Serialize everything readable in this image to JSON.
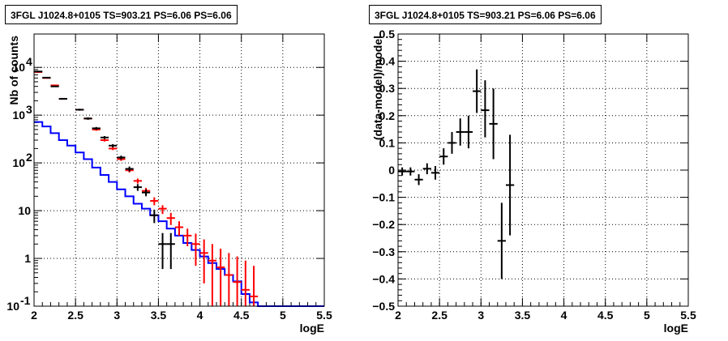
{
  "chart_data": [
    {
      "type": "histogram",
      "title": "3FGL J1024.8+0105 TS=903.21 PS=6.06 PS=6.06",
      "xlabel": "logE",
      "ylabel": "Nb of counts",
      "xlim": [
        2,
        5.5
      ],
      "ylim": [
        0.1,
        50000
      ],
      "yscale": "log",
      "grid": true,
      "x_ticks": [
        "2",
        "2.5",
        "3",
        "3.5",
        "4",
        "4.5",
        "5",
        "5.5"
      ],
      "y_ticks": [
        {
          "value": 0.1,
          "label": "10",
          "exp": "-1"
        },
        {
          "value": 1,
          "label": "1",
          "exp": ""
        },
        {
          "value": 10,
          "label": "10",
          "exp": ""
        },
        {
          "value": 100,
          "label": "10",
          "exp": "2"
        },
        {
          "value": 1000,
          "label": "10",
          "exp": "3"
        },
        {
          "value": 10000,
          "label": "10",
          "exp": "4"
        }
      ],
      "bin_edges": [
        2.0,
        2.1,
        2.2,
        2.3,
        2.4,
        2.5,
        2.6,
        2.7,
        2.8,
        2.9,
        3.0,
        3.1,
        3.2,
        3.3,
        3.4,
        3.5,
        3.6,
        3.7,
        3.8,
        3.9,
        4.0,
        4.1,
        4.2,
        4.3,
        4.4,
        4.5,
        4.6,
        4.7,
        4.8,
        4.9,
        5.0,
        5.1,
        5.2,
        5.3,
        5.4,
        5.5
      ],
      "series": [
        {
          "kind": "step",
          "color": "#0000ff",
          "values": [
            720,
            580,
            420,
            300,
            230,
            165,
            120,
            80,
            56,
            40,
            28,
            20,
            14,
            11,
            8,
            6,
            4.2,
            3.0,
            2.1,
            1.5,
            1.1,
            0.8,
            0.6,
            0.45,
            0.33,
            0.18,
            0.12,
            0.1,
            0.1,
            0.1,
            0.1,
            0.1,
            0.1,
            0.1,
            0.1
          ]
        },
        {
          "kind": "error_points",
          "color": "#ff0000",
          "points": [
            {
              "x": 2.05,
              "y": 8000,
              "lo": 7800,
              "hi": 8200
            },
            {
              "x": 2.15,
              "y": 6000,
              "lo": 5850,
              "hi": 6150
            },
            {
              "x": 2.25,
              "y": 4200,
              "lo": 4080,
              "hi": 4320
            },
            {
              "x": 2.35,
              "y": 2200,
              "lo": 2130,
              "hi": 2270
            },
            {
              "x": 2.55,
              "y": 1300,
              "lo": 1250,
              "hi": 1350
            },
            {
              "x": 2.65,
              "y": 850,
              "lo": 810,
              "hi": 890
            },
            {
              "x": 2.75,
              "y": 500,
              "lo": 470,
              "hi": 530
            },
            {
              "x": 2.85,
              "y": 300,
              "lo": 280,
              "hi": 320
            },
            {
              "x": 2.95,
              "y": 200,
              "lo": 185,
              "hi": 215
            },
            {
              "x": 3.05,
              "y": 120,
              "lo": 110,
              "hi": 130
            },
            {
              "x": 3.15,
              "y": 70,
              "lo": 63,
              "hi": 77
            },
            {
              "x": 3.25,
              "y": 42,
              "lo": 37,
              "hi": 47
            },
            {
              "x": 3.35,
              "y": 26,
              "lo": 22,
              "hi": 30
            },
            {
              "x": 3.45,
              "y": 16,
              "lo": 13,
              "hi": 19
            },
            {
              "x": 3.55,
              "y": 11,
              "lo": 8.5,
              "hi": 13
            },
            {
              "x": 3.65,
              "y": 7,
              "lo": 5,
              "hi": 9
            },
            {
              "x": 3.75,
              "y": 4.5,
              "lo": 3,
              "hi": 6
            },
            {
              "x": 3.85,
              "y": 3.0,
              "lo": 1.8,
              "hi": 4.2
            },
            {
              "x": 3.95,
              "y": 2.0,
              "lo": 0.7,
              "hi": 3.3
            },
            {
              "x": 4.05,
              "y": 1.3,
              "lo": 0.3,
              "hi": 2.5
            },
            {
              "x": 4.15,
              "y": 0.9,
              "lo": 0.1,
              "hi": 2.0
            },
            {
              "x": 4.25,
              "y": 0.65,
              "lo": 0.1,
              "hi": 1.6
            },
            {
              "x": 4.35,
              "y": 0.45,
              "lo": 0.1,
              "hi": 1.3
            },
            {
              "x": 4.45,
              "y": 0.32,
              "lo": 0.1,
              "hi": 1.1
            },
            {
              "x": 4.55,
              "y": 0.22,
              "lo": 0.1,
              "hi": 0.9
            },
            {
              "x": 4.65,
              "y": 0.16,
              "lo": 0.1,
              "hi": 0.7
            }
          ]
        },
        {
          "kind": "error_points",
          "color": "#000000",
          "points": [
            {
              "x": 2.05,
              "y": 8200,
              "lo": 7900,
              "hi": 8500
            },
            {
              "x": 2.15,
              "y": 6100,
              "lo": 5900,
              "hi": 6300
            },
            {
              "x": 2.25,
              "y": 4000,
              "lo": 3870,
              "hi": 4130
            },
            {
              "x": 2.35,
              "y": 2200,
              "lo": 2110,
              "hi": 2290
            },
            {
              "x": 2.55,
              "y": 1300,
              "lo": 1240,
              "hi": 1360
            },
            {
              "x": 2.65,
              "y": 850,
              "lo": 800,
              "hi": 900
            },
            {
              "x": 2.75,
              "y": 530,
              "lo": 495,
              "hi": 565
            },
            {
              "x": 2.85,
              "y": 340,
              "lo": 315,
              "hi": 365
            },
            {
              "x": 2.95,
              "y": 230,
              "lo": 212,
              "hi": 248
            },
            {
              "x": 3.05,
              "y": 130,
              "lo": 118,
              "hi": 142
            },
            {
              "x": 3.15,
              "y": 75,
              "lo": 66,
              "hi": 84
            },
            {
              "x": 3.25,
              "y": 31,
              "lo": 26,
              "hi": 36
            },
            {
              "x": 3.35,
              "y": 24,
              "lo": 20,
              "hi": 28
            },
            {
              "x": 3.45,
              "y": 8,
              "lo": 5.5,
              "hi": 10.5
            },
            {
              "x": 3.55,
              "y": 2,
              "lo": 0.6,
              "hi": 3.4
            },
            {
              "x": 3.65,
              "y": 2,
              "lo": 0.6,
              "hi": 3.4
            }
          ]
        }
      ]
    },
    {
      "type": "scatter",
      "title": "3FGL J1024.8+0105 TS=903.21 PS=6.06 PS=6.06",
      "xlabel": "logE",
      "ylabel": "(data-model)/model",
      "xlim": [
        2,
        5.5
      ],
      "ylim": [
        -0.5,
        0.5
      ],
      "grid": true,
      "x_ticks": [
        "2",
        "2.5",
        "3",
        "3.5",
        "4",
        "4.5",
        "5",
        "5.5"
      ],
      "y_ticks": [
        "−0.5",
        "−0.4",
        "−0.3",
        "−0.2",
        "−0.1",
        "0",
        "0.1",
        "0.2",
        "0.3",
        "0.4",
        "0.5"
      ],
      "y_tick_values": [
        -0.5,
        -0.4,
        -0.3,
        -0.2,
        -0.1,
        0,
        0.1,
        0.2,
        0.3,
        0.4,
        0.5
      ],
      "series": [
        {
          "kind": "error_points",
          "color": "#000000",
          "points": [
            {
              "x": 2.05,
              "y": -0.005,
              "lo": -0.02,
              "hi": 0.01
            },
            {
              "x": 2.15,
              "y": -0.005,
              "lo": -0.02,
              "hi": 0.01
            },
            {
              "x": 2.25,
              "y": -0.035,
              "lo": -0.055,
              "hi": -0.015
            },
            {
              "x": 2.35,
              "y": 0.005,
              "lo": -0.015,
              "hi": 0.025
            },
            {
              "x": 2.45,
              "y": -0.01,
              "lo": -0.035,
              "hi": 0.015
            },
            {
              "x": 2.55,
              "y": 0.05,
              "lo": 0.02,
              "hi": 0.08
            },
            {
              "x": 2.65,
              "y": 0.1,
              "lo": 0.06,
              "hi": 0.14
            },
            {
              "x": 2.75,
              "y": 0.14,
              "lo": 0.09,
              "hi": 0.19
            },
            {
              "x": 2.85,
              "y": 0.14,
              "lo": 0.08,
              "hi": 0.2
            },
            {
              "x": 2.95,
              "y": 0.29,
              "lo": 0.21,
              "hi": 0.37
            },
            {
              "x": 3.05,
              "y": 0.22,
              "lo": 0.12,
              "hi": 0.33
            },
            {
              "x": 3.15,
              "y": 0.17,
              "lo": 0.04,
              "hi": 0.3
            },
            {
              "x": 3.25,
              "y": -0.26,
              "lo": -0.4,
              "hi": -0.12
            },
            {
              "x": 3.35,
              "y": -0.055,
              "lo": -0.24,
              "hi": 0.13
            }
          ]
        }
      ]
    }
  ]
}
